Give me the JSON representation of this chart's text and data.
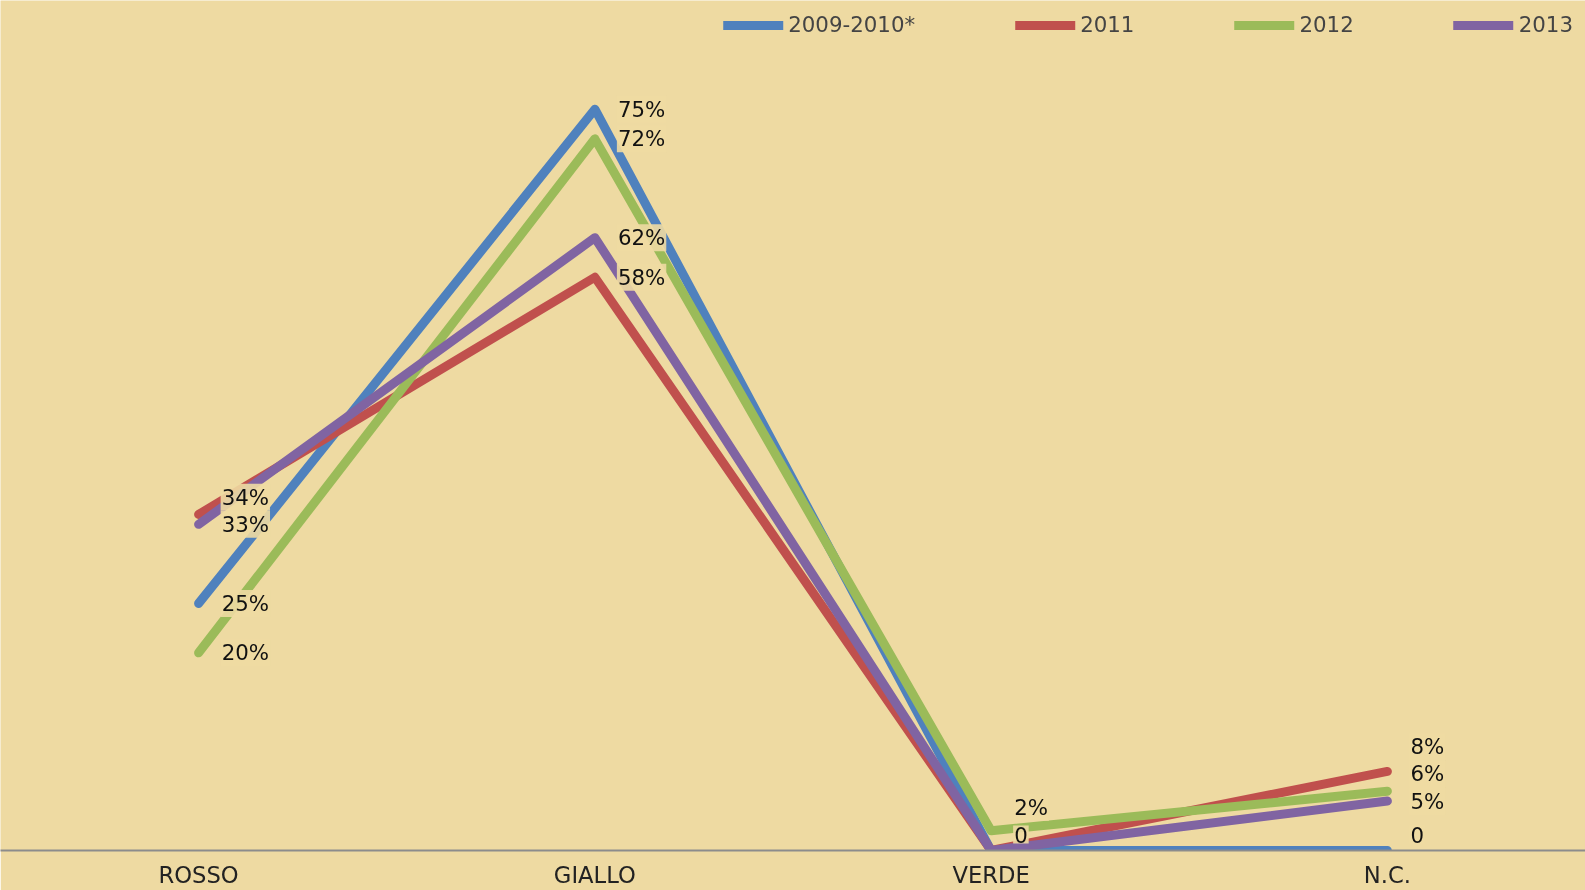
{
  "chart_data": {
    "type": "line",
    "categories": [
      "ROSSO",
      "GIALLO",
      "VERDE",
      "N.C."
    ],
    "ylim": [
      0,
      86
    ],
    "legend": "top",
    "grid": false,
    "marker": "none",
    "line_style": "solid",
    "series": [
      {
        "name": "2009-2010*",
        "color": "#4f81bd",
        "values": [
          25,
          75,
          0,
          0
        ],
        "value_labels": [
          "25%",
          "75%",
          null,
          "0"
        ]
      },
      {
        "name": "2011",
        "color": "#c0504d",
        "values": [
          34,
          58,
          0,
          8
        ],
        "value_labels": [
          "34%",
          "58%",
          null,
          "8%"
        ]
      },
      {
        "name": "2012",
        "color": "#9bbb59",
        "values": [
          20,
          72,
          2,
          6
        ],
        "value_labels": [
          "20%",
          "72%",
          "2%",
          "6%"
        ]
      },
      {
        "name": "2013",
        "color": "#8064a2",
        "values": [
          33,
          62,
          0,
          5
        ],
        "value_labels": [
          "33%",
          "62%",
          "0",
          "5%"
        ]
      }
    ]
  }
}
